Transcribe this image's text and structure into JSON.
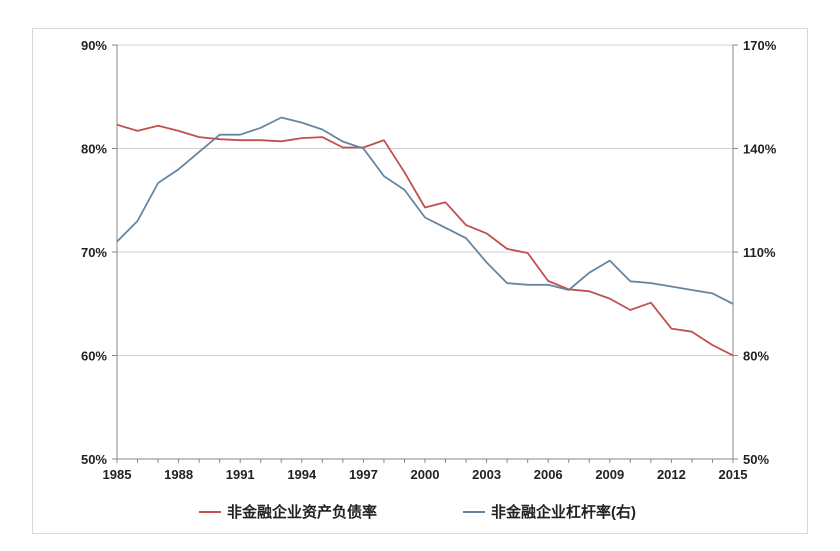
{
  "chart_data": {
    "type": "line",
    "title": "",
    "xlabel": "",
    "ylabel": "",
    "x": [
      1985,
      1986,
      1987,
      1988,
      1989,
      1990,
      1991,
      1992,
      1993,
      1994,
      1995,
      1996,
      1997,
      1998,
      1999,
      2000,
      2001,
      2002,
      2003,
      2004,
      2005,
      2006,
      2007,
      2008,
      2009,
      2010,
      2011,
      2012,
      2013,
      2014,
      2015
    ],
    "x_tick_labels": [
      "1985",
      "1988",
      "1991",
      "1994",
      "1997",
      "2000",
      "2003",
      "2006",
      "2009",
      "2012",
      "2015"
    ],
    "x_ticks": [
      1985,
      1988,
      1991,
      1994,
      1997,
      2000,
      2003,
      2006,
      2009,
      2012,
      2015
    ],
    "y_left": {
      "range": [
        50,
        90
      ],
      "ticks": [
        50,
        60,
        70,
        80,
        90
      ],
      "tick_labels": [
        "50%",
        "60%",
        "70%",
        "80%",
        "90%"
      ]
    },
    "y_right": {
      "range": [
        50,
        170
      ],
      "ticks": [
        50,
        80,
        110,
        140,
        170
      ],
      "tick_labels": [
        "50%",
        "80%",
        "110%",
        "140%",
        "170%"
      ]
    },
    "grid": "horizontal",
    "legend_position": "bottom",
    "series": [
      {
        "name": "非金融企业资产负债率",
        "axis": "left",
        "color": "#c0504d",
        "values": [
          82.3,
          81.7,
          82.2,
          81.7,
          81.1,
          80.9,
          80.8,
          80.8,
          80.7,
          81.0,
          81.1,
          80.1,
          80.1,
          80.8,
          77.7,
          74.3,
          74.8,
          72.6,
          71.8,
          70.3,
          69.9,
          67.2,
          66.4,
          66.2,
          65.5,
          64.4,
          65.1,
          62.6,
          62.3,
          61.0,
          60.0
        ]
      },
      {
        "name": "非金融企业杠杆率(右)",
        "axis": "right",
        "color": "#6685a1",
        "values": [
          113,
          119,
          130,
          134,
          139,
          144,
          144,
          146,
          149,
          147.5,
          145.5,
          142,
          140,
          132,
          128,
          120,
          117,
          114,
          107,
          101,
          100.5,
          100.5,
          99,
          104,
          107.5,
          101.5,
          101,
          100,
          99,
          98,
          95
        ]
      }
    ]
  }
}
